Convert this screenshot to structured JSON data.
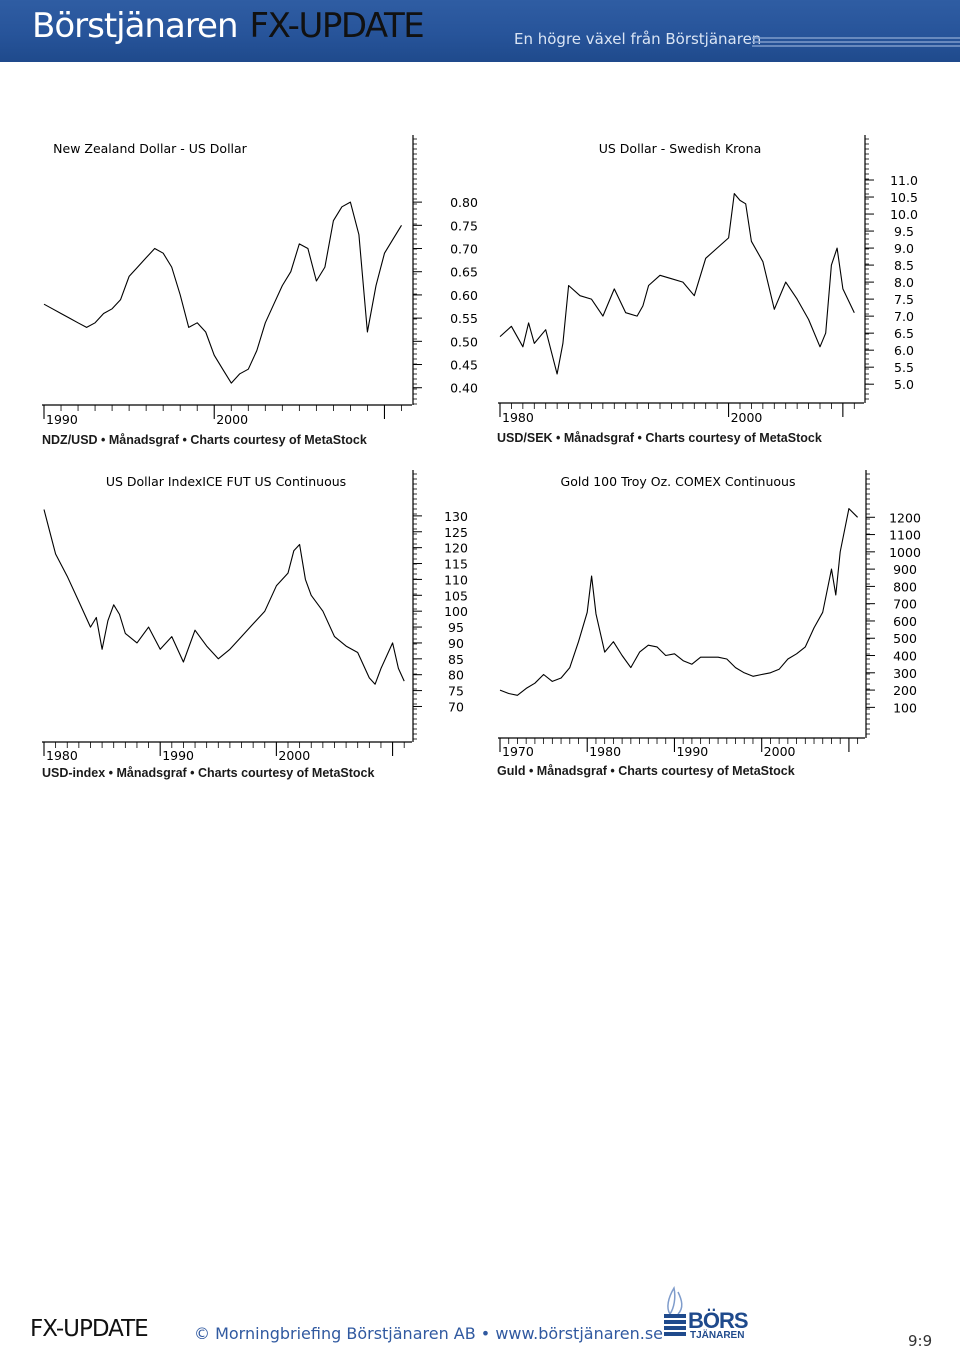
{
  "header": {
    "brand": "Börstjänaren",
    "product": "FX-UPDATE",
    "tagline": "En högre växel från Börstjänaren"
  },
  "footer": {
    "product": "FX-UPDATE",
    "copyright": "© Morningbriefing Börstjänaren AB • www.börstjänaren.se",
    "logo_top": "BÖRS",
    "logo_bottom": "TJÄNAREN",
    "page": "9:9"
  },
  "chart_data": [
    {
      "type": "line",
      "title": "New Zealand Dollar - US Dollar",
      "caption": "NDZ/USD • Månadsgraf • Charts courtesy of MetaStock",
      "xlim": [
        1990,
        2011.5
      ],
      "ylim": [
        0.38,
        0.88
      ],
      "yticks": [
        0.8,
        0.75,
        0.7,
        0.65,
        0.6,
        0.55,
        0.5,
        0.45,
        0.4
      ],
      "ytick_labels": [
        "0.80",
        "0.75",
        "0.70",
        "0.65",
        "0.60",
        "0.55",
        "0.50",
        "0.45",
        "0.40"
      ],
      "xticks": [
        1990,
        2000,
        2010
      ],
      "xtick_labels": [
        "1990",
        "2000",
        ""
      ],
      "series": [
        {
          "x": [
            1990.0,
            1990.5,
            1991.0,
            1991.5,
            1992.0,
            1992.5,
            1993.0,
            1993.5,
            1994.0,
            1994.5,
            1995.0,
            1995.5,
            1996.0,
            1996.5,
            1997.0,
            1997.5,
            1998.0,
            1998.5,
            1999.0,
            1999.5,
            2000.0,
            2000.5,
            2001.0,
            2001.5,
            2002.0,
            2002.5,
            2003.0,
            2003.5,
            2004.0,
            2004.5,
            2005.0,
            2005.5,
            2006.0,
            2006.5,
            2007.0,
            2007.5,
            2008.0,
            2008.5,
            2009.0,
            2009.5,
            2010.0,
            2010.5,
            2011.0
          ],
          "y": [
            0.58,
            0.57,
            0.56,
            0.55,
            0.54,
            0.53,
            0.54,
            0.56,
            0.57,
            0.59,
            0.64,
            0.66,
            0.68,
            0.7,
            0.69,
            0.66,
            0.6,
            0.53,
            0.54,
            0.52,
            0.47,
            0.44,
            0.41,
            0.43,
            0.44,
            0.48,
            0.54,
            0.58,
            0.62,
            0.65,
            0.71,
            0.7,
            0.63,
            0.66,
            0.76,
            0.79,
            0.8,
            0.73,
            0.52,
            0.62,
            0.69,
            0.72,
            0.75
          ]
        }
      ]
    },
    {
      "type": "line",
      "title": "US Dollar - Swedish Krona",
      "caption": "USD/SEK • Månadsgraf • Charts courtesy of MetaStock",
      "xlim": [
        1980,
        2011.5
      ],
      "ylim": [
        4.8,
        11.5
      ],
      "yticks": [
        11.0,
        10.5,
        10.0,
        9.5,
        9.0,
        8.5,
        8.0,
        7.5,
        7.0,
        6.5,
        6.0,
        5.5,
        5.0
      ],
      "ytick_labels": [
        "11.0",
        "10.5",
        "10.0",
        "9.5",
        "9.0",
        "8.5",
        "8.0",
        "7.5",
        "7.0",
        "6.5",
        "6.0",
        "5.5",
        "5.0"
      ],
      "xticks": [
        1980,
        2000,
        2010
      ],
      "xtick_labels": [
        "1980",
        "2000",
        ""
      ],
      "series": [
        {
          "x": [
            1980.0,
            1981.0,
            1982.0,
            1982.5,
            1983.0,
            1984.0,
            1985.0,
            1985.5,
            1986.0,
            1987.0,
            1988.0,
            1989.0,
            1990.0,
            1991.0,
            1992.0,
            1992.5,
            1993.0,
            1994.0,
            1995.0,
            1996.0,
            1997.0,
            1998.0,
            1999.0,
            2000.0,
            2000.5,
            2001.0,
            2001.5,
            2002.0,
            2003.0,
            2004.0,
            2005.0,
            2006.0,
            2007.0,
            2008.0,
            2008.5,
            2009.0,
            2009.5,
            2010.0,
            2011.0
          ],
          "y": [
            6.4,
            6.7,
            6.1,
            6.8,
            6.2,
            6.6,
            5.3,
            6.2,
            7.9,
            7.6,
            7.5,
            7.0,
            7.8,
            7.1,
            7.0,
            7.3,
            7.9,
            8.2,
            8.1,
            8.0,
            7.6,
            8.7,
            9.0,
            9.3,
            10.6,
            10.4,
            10.3,
            9.2,
            8.6,
            7.2,
            8.0,
            7.5,
            6.9,
            6.1,
            6.5,
            8.5,
            9.0,
            7.8,
            7.1
          ]
        }
      ]
    },
    {
      "type": "line",
      "title": "US Dollar IndexICE FUT US Continuous",
      "caption": "USD-index • Månadsgraf • Charts courtesy of MetaStock",
      "xlim": [
        1980,
        2011.5
      ],
      "ylim": [
        67,
        135
      ],
      "yticks": [
        130,
        125,
        120,
        115,
        110,
        105,
        100,
        95,
        90,
        85,
        80,
        75,
        70
      ],
      "ytick_labels": [
        "130",
        "125",
        "120",
        "115",
        "110",
        "105",
        "100",
        "95",
        "90",
        "85",
        "80",
        "75",
        "70"
      ],
      "xticks": [
        1980,
        1990,
        2000,
        2010
      ],
      "xtick_labels": [
        "1980",
        "1990",
        "2000",
        ""
      ],
      "series": [
        {
          "x": [
            1980.0,
            1980.5,
            1981.0,
            1982.0,
            1983.0,
            1984.0,
            1984.5,
            1985.0,
            1985.5,
            1986.0,
            1986.5,
            1987.0,
            1988.0,
            1989.0,
            1990.0,
            1991.0,
            1992.0,
            1993.0,
            1994.0,
            1995.0,
            1996.0,
            1997.0,
            1998.0,
            1999.0,
            2000.0,
            2001.0,
            2001.5,
            2002.0,
            2002.5,
            2003.0,
            2004.0,
            2005.0,
            2006.0,
            2007.0,
            2008.0,
            2008.5,
            2009.0,
            2010.0,
            2010.5,
            2011.0
          ],
          "y": [
            132,
            125,
            118,
            111,
            103,
            95,
            98,
            88,
            97,
            102,
            99,
            93,
            90,
            95,
            88,
            92,
            84,
            94,
            89,
            85,
            88,
            92,
            96,
            100,
            108,
            112,
            119,
            121,
            110,
            105,
            100,
            92,
            89,
            87,
            79,
            77,
            82,
            90,
            82,
            78
          ]
        }
      ]
    },
    {
      "type": "line",
      "title": "Gold 100 Troy Oz. COMEX Continuous",
      "caption": "Guld • Månadsgraf • Charts courtesy of MetaStock",
      "xlim": [
        1970,
        2011.5
      ],
      "ylim": [
        50,
        1300
      ],
      "yticks": [
        1200,
        1100,
        1000,
        900,
        800,
        700,
        600,
        500,
        400,
        300,
        200,
        100
      ],
      "ytick_labels": [
        "1200",
        "1100",
        "1000",
        "900",
        "800",
        "700",
        "600",
        "500",
        "400",
        "300",
        "200",
        "100"
      ],
      "xticks": [
        1970,
        1980,
        1990,
        2000,
        2010
      ],
      "xtick_labels": [
        "1970",
        "1980",
        "1990",
        "2000",
        ""
      ],
      "series": [
        {
          "x": [
            1970.0,
            1971.0,
            1972.0,
            1973.0,
            1974.0,
            1975.0,
            1976.0,
            1977.0,
            1978.0,
            1979.0,
            1980.0,
            1980.5,
            1981.0,
            1982.0,
            1983.0,
            1984.0,
            1985.0,
            1986.0,
            1987.0,
            1988.0,
            1989.0,
            1990.0,
            1991.0,
            1992.0,
            1993.0,
            1994.0,
            1995.0,
            1996.0,
            1997.0,
            1998.0,
            1999.0,
            2000.0,
            2001.0,
            2002.0,
            2003.0,
            2004.0,
            2005.0,
            2006.0,
            2007.0,
            2008.0,
            2008.5,
            2009.0,
            2010.0,
            2011.0
          ],
          "y": [
            200,
            180,
            170,
            210,
            240,
            290,
            250,
            270,
            330,
            480,
            650,
            860,
            640,
            420,
            480,
            400,
            330,
            420,
            460,
            450,
            400,
            410,
            370,
            350,
            390,
            390,
            390,
            380,
            330,
            300,
            280,
            290,
            300,
            320,
            380,
            410,
            450,
            560,
            650,
            900,
            750,
            1000,
            1250,
            1200
          ]
        }
      ]
    }
  ]
}
